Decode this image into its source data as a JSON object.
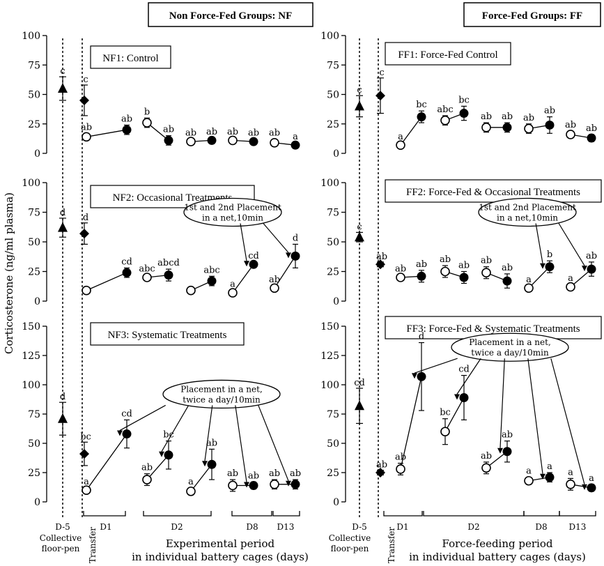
{
  "headers": {
    "nf": "Non Force-Fed Groups: NF",
    "ff": "Force-Fed Groups: FF"
  },
  "y_axis_label": "Corticosterone (ng/ml plasma)",
  "x_axis": {
    "left_title_line1": "Experimental period",
    "left_title_line2": "in individual battery cages (days)",
    "right_title_line1": "Force-feeding period",
    "right_title_line2": "in individual battery cages (days)",
    "collective_line1": "Collective",
    "collective_line2": "floor-pen",
    "transfer": "Transfer",
    "day_labels": [
      "D-5",
      "D1",
      "D2",
      "D8",
      "D13"
    ]
  },
  "chart_data": [
    {
      "type": "scatter",
      "title": "NF1: Control",
      "ylim": [
        0,
        100
      ],
      "yticks": [
        0,
        25,
        50,
        75,
        100
      ],
      "pre_points": [
        {
          "x": "D-5",
          "marker": "triangle",
          "y": 55,
          "err": 10,
          "label": "c"
        },
        {
          "x": "Transfer",
          "marker": "diamond",
          "y": 45,
          "err": 13,
          "label": "c"
        }
      ],
      "pairs": [
        {
          "before": 14,
          "after": 20,
          "err_before": 3,
          "err_after": 4,
          "label_before": "ab",
          "label_after": "ab"
        },
        {
          "before": 26,
          "after": 11,
          "err_before": 4,
          "err_after": 4,
          "label_before": "b",
          "label_after": "ab"
        },
        {
          "before": 10,
          "after": 11,
          "err_before": 2,
          "err_after": 2,
          "label_before": "ab",
          "label_after": "ab"
        },
        {
          "before": 11,
          "after": 10,
          "err_before": 2,
          "err_after": 2,
          "label_before": "ab",
          "label_after": "ab"
        },
        {
          "before": 9,
          "after": 7,
          "err_before": 3,
          "err_after": 2,
          "label_before": "ab",
          "label_after": "a"
        }
      ]
    },
    {
      "type": "scatter",
      "title": "NF2: Occasional Treatments",
      "ylim": [
        0,
        100
      ],
      "yticks": [
        0,
        25,
        50,
        75,
        100
      ],
      "annotation_line1": "1st and 2nd Placement",
      "annotation_line2": "in a net,10min",
      "pre_points": [
        {
          "x": "D-5",
          "marker": "triangle",
          "y": 62,
          "err": 8,
          "label": "d"
        },
        {
          "x": "Transfer",
          "marker": "diamond",
          "y": 57,
          "err": 9,
          "label": "d"
        }
      ],
      "pairs": [
        {
          "before": 9,
          "after": 24,
          "err_before": 2,
          "err_after": 4,
          "label_before": "",
          "label_after": "cd"
        },
        {
          "before": 20,
          "after": 22,
          "err_before": 2,
          "err_after": 5,
          "label_before": "abc",
          "label_after": "abcd"
        },
        {
          "before": 9,
          "after": 17,
          "err_before": 2,
          "err_after": 4,
          "label_before": "",
          "label_after": "abc"
        },
        {
          "before": 7,
          "after": 31,
          "err_before": 2,
          "err_after": 2,
          "label_before": "a",
          "label_after": "cd"
        },
        {
          "before": 11,
          "after": 38,
          "err_before": 2,
          "err_after": 10,
          "label_before": "ab",
          "label_after": "d"
        }
      ]
    },
    {
      "type": "scatter",
      "title": "NF3: Systematic Treatments",
      "ylim": [
        0,
        150
      ],
      "yticks": [
        0,
        25,
        50,
        75,
        100,
        125,
        150
      ],
      "annotation_line1": "Placement in a net,",
      "annotation_line2": "twice a day/10min",
      "pre_points": [
        {
          "x": "D-5",
          "marker": "triangle",
          "y": 71,
          "err": 14,
          "label": "d"
        },
        {
          "x": "Transfer",
          "marker": "diamond",
          "y": 41,
          "err": 10,
          "label": "bc"
        }
      ],
      "pairs": [
        {
          "before": 10,
          "after": 58,
          "err_before": 2,
          "err_after": 12,
          "label_before": "a",
          "label_after": "cd"
        },
        {
          "before": 19,
          "after": 40,
          "err_before": 5,
          "err_after": 12,
          "label_before": "ab",
          "label_after": "bc"
        },
        {
          "before": 9,
          "after": 32,
          "err_before": 3,
          "err_after": 13,
          "label_before": "a",
          "label_after": "ab"
        },
        {
          "before": 14,
          "after": 14,
          "err_before": 5,
          "err_after": 3,
          "label_before": "ab",
          "label_after": "ab"
        },
        {
          "before": 15,
          "after": 15,
          "err_before": 4,
          "err_after": 4,
          "label_before": "ab",
          "label_after": "ab"
        }
      ]
    },
    {
      "type": "scatter",
      "title": "FF1: Force-Fed Control",
      "ylim": [
        0,
        100
      ],
      "yticks": [
        0,
        25,
        50,
        75,
        100
      ],
      "pre_points": [
        {
          "x": "D-5",
          "marker": "triangle",
          "y": 40,
          "err": 9,
          "label": "c"
        },
        {
          "x": "Transfer",
          "marker": "diamond",
          "y": 49,
          "err": 15,
          "label": "c"
        }
      ],
      "pairs": [
        {
          "before": 7,
          "after": 31,
          "err_before": 2,
          "err_after": 5,
          "label_before": "a",
          "label_after": "bc"
        },
        {
          "before": 28,
          "after": 34,
          "err_before": 4,
          "err_after": 6,
          "label_before": "abc",
          "label_after": "bc"
        },
        {
          "before": 22,
          "after": 22,
          "err_before": 4,
          "err_after": 4,
          "label_before": "ab",
          "label_after": "ab"
        },
        {
          "before": 21,
          "after": 24,
          "err_before": 4,
          "err_after": 7,
          "label_before": "ab",
          "label_after": "ab"
        },
        {
          "before": 16,
          "after": 13,
          "err_before": 3,
          "err_after": 3,
          "label_before": "ab",
          "label_after": "ab"
        }
      ]
    },
    {
      "type": "scatter",
      "title": "FF2: Force-Fed & Occasional Treatments",
      "ylim": [
        0,
        100
      ],
      "yticks": [
        0,
        25,
        50,
        75,
        100
      ],
      "annotation_line1": "1st and 2nd Placement",
      "annotation_line2": "in a net,10min",
      "pre_points": [
        {
          "x": "D-5",
          "marker": "triangle",
          "y": 54,
          "err": 4,
          "label": "c"
        },
        {
          "x": "Transfer",
          "marker": "diamond",
          "y": 31,
          "err": 2,
          "label": "ab"
        }
      ],
      "pairs": [
        {
          "before": 20,
          "after": 21,
          "err_before": 2,
          "err_after": 5,
          "label_before": "ab",
          "label_after": "ab"
        },
        {
          "before": 25,
          "after": 20,
          "err_before": 5,
          "err_after": 5,
          "label_before": "ab",
          "label_after": "ab"
        },
        {
          "before": 24,
          "after": 17,
          "err_before": 5,
          "err_after": 6,
          "label_before": "ab",
          "label_after": "ab"
        },
        {
          "before": 11,
          "after": 29,
          "err_before": 2,
          "err_after": 5,
          "label_before": "a",
          "label_after": "b"
        },
        {
          "before": 12,
          "after": 27,
          "err_before": 2,
          "err_after": 6,
          "label_before": "a",
          "label_after": "ab"
        }
      ]
    },
    {
      "type": "scatter",
      "title": "FF3: Force-Fed & Systematic Treatments",
      "ylim": [
        0,
        150
      ],
      "yticks": [
        0,
        25,
        50,
        75,
        100,
        125,
        150
      ],
      "annotation_line1": "Placement in a net,",
      "annotation_line2": "twice a day/10min",
      "pre_points": [
        {
          "x": "D-5",
          "marker": "triangle",
          "y": 82,
          "err": 15,
          "label": "cd"
        },
        {
          "x": "Transfer",
          "marker": "diamond",
          "y": 25,
          "err": 2,
          "label": "ab"
        }
      ],
      "pairs": [
        {
          "before": 28,
          "after": 107,
          "err_before": 5,
          "err_after": 29,
          "label_before": "ab",
          "label_after": "d"
        },
        {
          "before": 60,
          "after": 89,
          "err_before": 11,
          "err_after": 19,
          "label_before": "bc",
          "label_after": "cd"
        },
        {
          "before": 29,
          "after": 43,
          "err_before": 5,
          "err_after": 9,
          "label_before": "ab",
          "label_after": "ab"
        },
        {
          "before": 18,
          "after": 21,
          "err_before": 3,
          "err_after": 4,
          "label_before": "a",
          "label_after": "a"
        },
        {
          "before": 15,
          "after": 12,
          "err_before": 5,
          "err_after": 3,
          "label_before": "a",
          "label_after": "a"
        }
      ]
    }
  ]
}
